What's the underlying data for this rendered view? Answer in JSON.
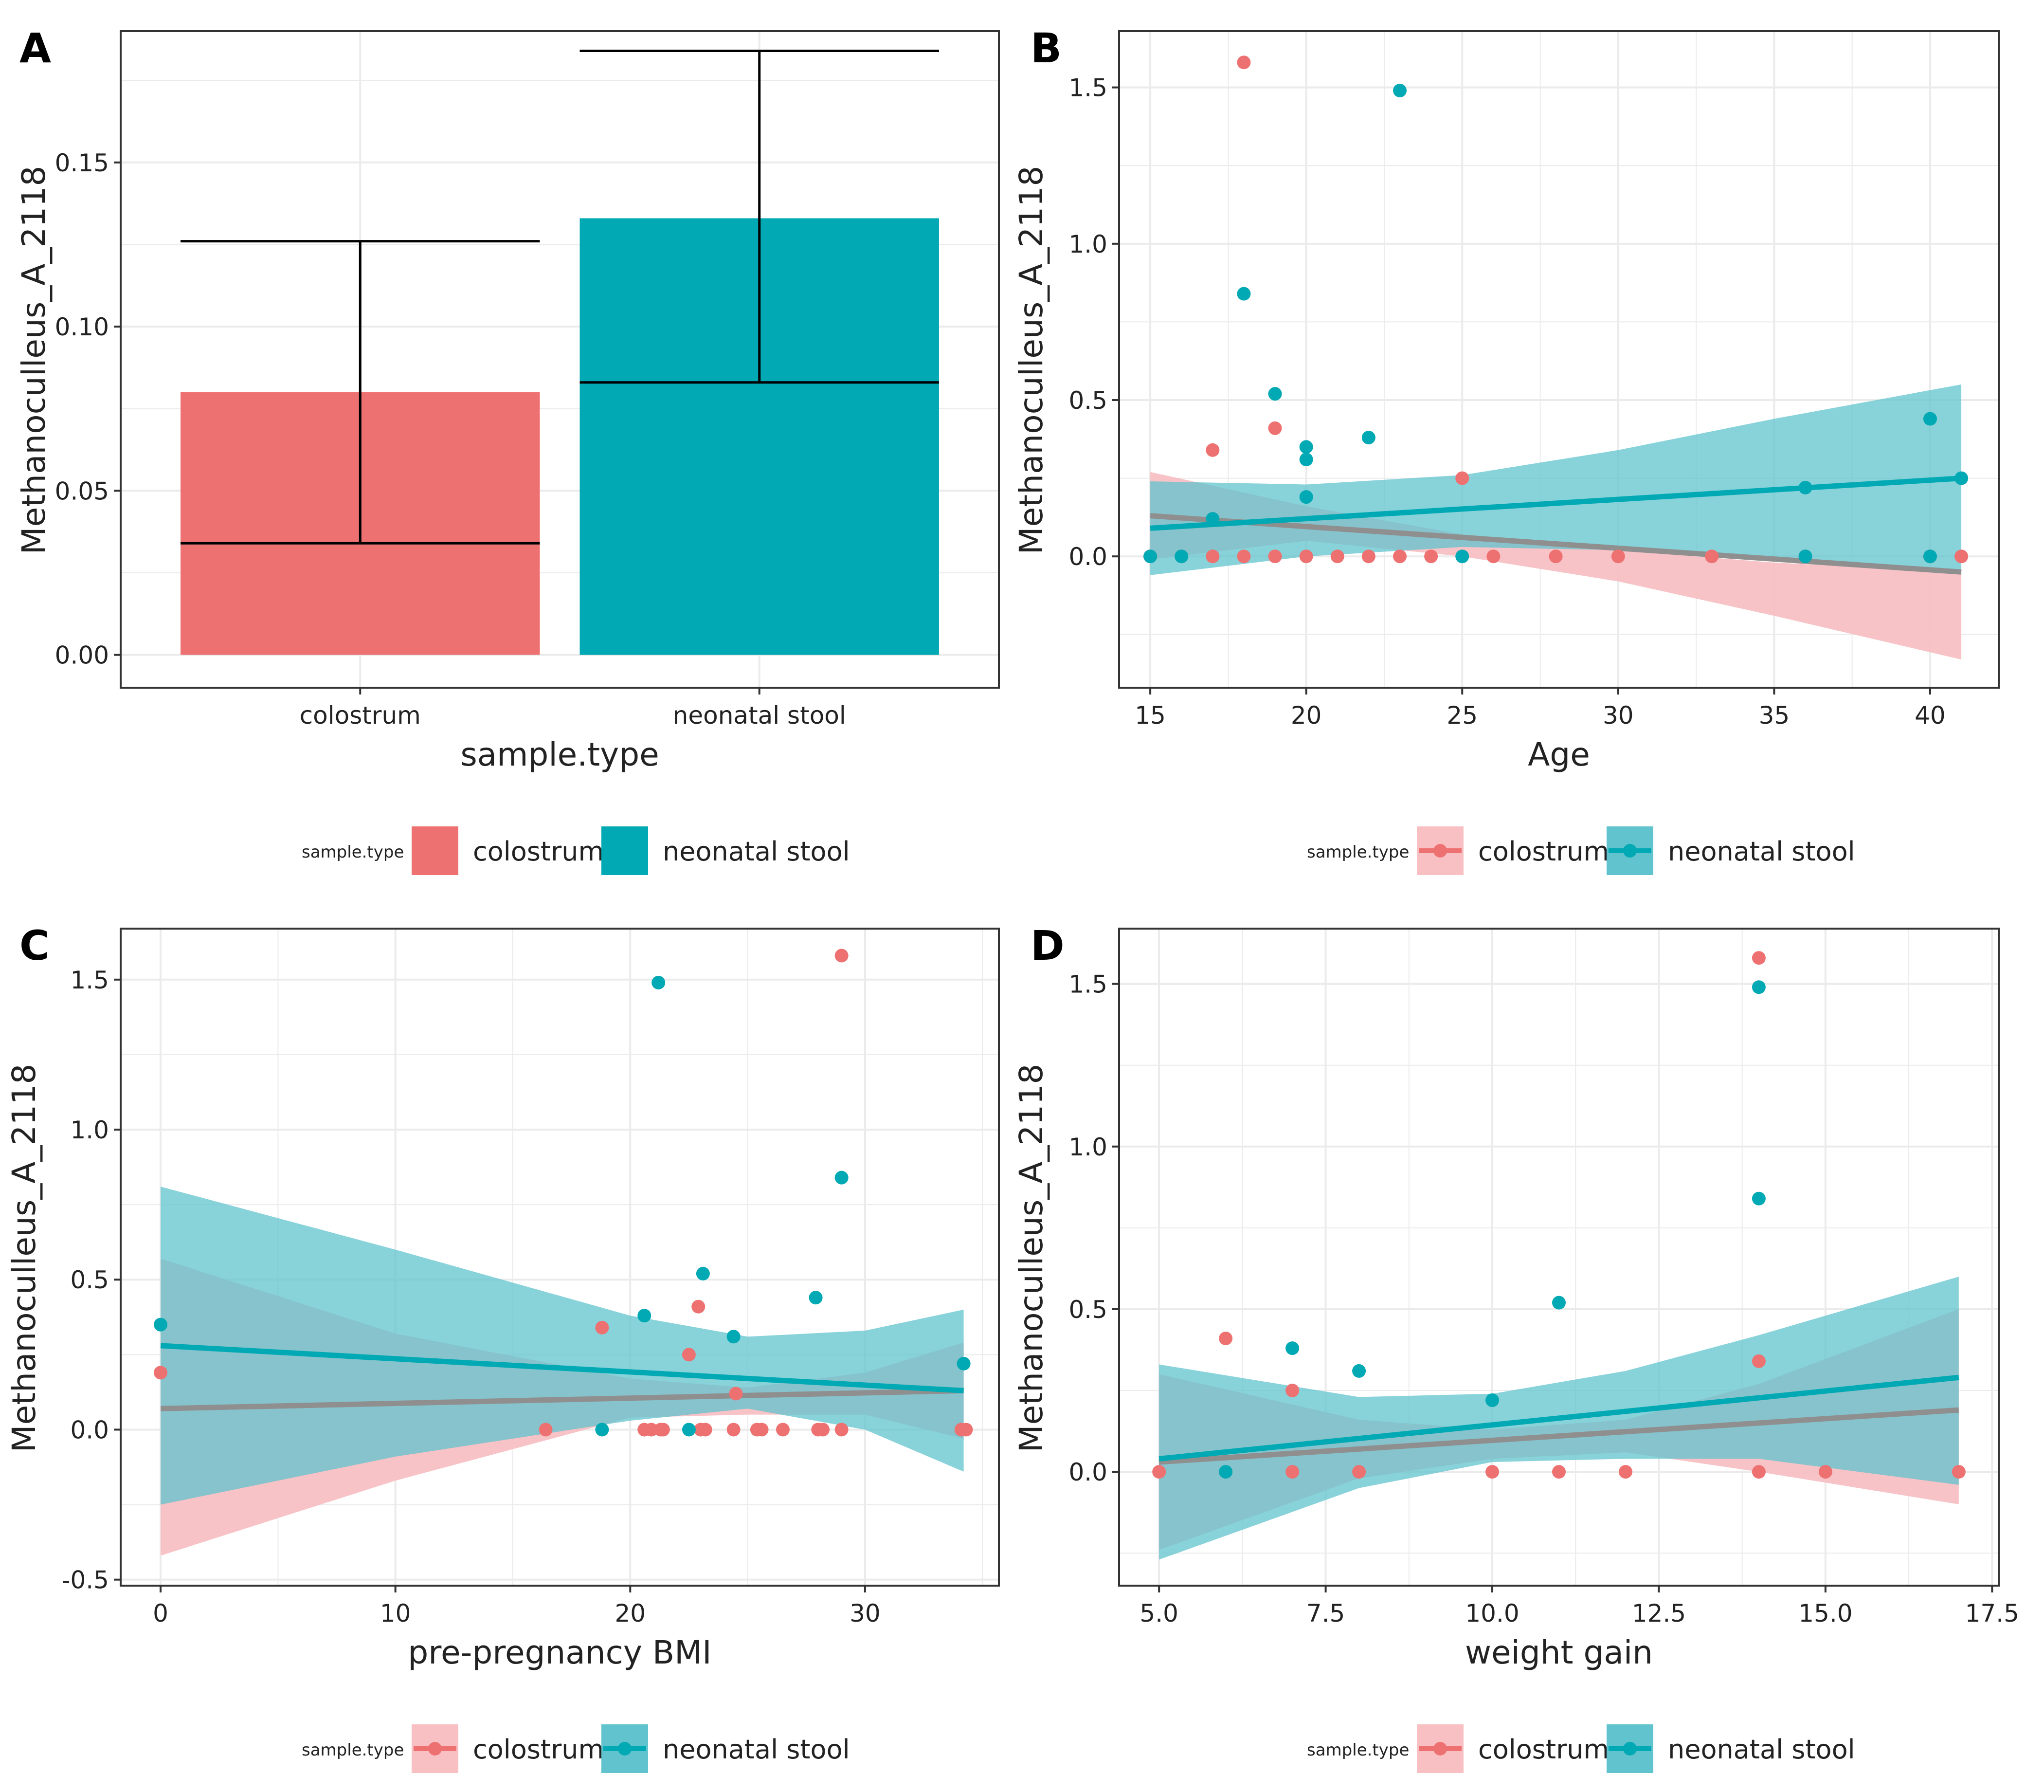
{
  "colors": {
    "colostrum": "#ee7171",
    "colostrum_band": "#f8c0c3",
    "neonatal": "#00a9b3",
    "neonatal_band": "#60c3cd",
    "overlap": "#8f8f8f"
  },
  "chart_data": [
    {
      "panel": "A",
      "type": "bar",
      "title": "",
      "xlabel": "sample.type",
      "ylabel": "Methanoculleus_A_2118",
      "ylim": [
        -0.01,
        0.19
      ],
      "yticks": [
        "0.00",
        "0.05",
        "0.10",
        "0.15"
      ],
      "categories": [
        "colostrum",
        "neonatal stool"
      ],
      "values": [
        0.08,
        0.133
      ],
      "error_low": [
        0.034,
        0.083
      ],
      "error_high": [
        0.126,
        0.184
      ],
      "legend": {
        "title": "sample.type",
        "entries": [
          "colostrum",
          "neonatal stool"
        ]
      }
    },
    {
      "panel": "B",
      "type": "scatter",
      "xlabel": "Age",
      "ylabel": "Methanoculleus_A_2118",
      "xlim": [
        14,
        42.2
      ],
      "ylim": [
        -0.42,
        1.68
      ],
      "xticks": [
        "15",
        "20",
        "25",
        "30",
        "35",
        "40"
      ],
      "yticks": [
        "0.0",
        "0.5",
        "1.0",
        "1.5"
      ],
      "series": [
        {
          "name": "colostrum",
          "points": [
            [
              15,
              0
            ],
            [
              16,
              0
            ],
            [
              17,
              0
            ],
            [
              17,
              0.34
            ],
            [
              18,
              1.58
            ],
            [
              18,
              0
            ],
            [
              19,
              0.41
            ],
            [
              19,
              0
            ],
            [
              20,
              0
            ],
            [
              21,
              0
            ],
            [
              22,
              0
            ],
            [
              23,
              0
            ],
            [
              24,
              0
            ],
            [
              25,
              0.25
            ],
            [
              26,
              0
            ],
            [
              28,
              0
            ],
            [
              30,
              0
            ],
            [
              33,
              0
            ],
            [
              36,
              0
            ],
            [
              40,
              0
            ],
            [
              41,
              0
            ]
          ],
          "fit": [
            [
              15,
              0.13
            ],
            [
              41,
              -0.05
            ]
          ],
          "band": [
            [
              15,
              0.27
            ],
            [
              20,
              0.16
            ],
            [
              25,
              0.07
            ],
            [
              30,
              0.02
            ],
            [
              35,
              -0.02
            ],
            [
              41,
              -0.05
            ],
            [
              41,
              -0.33
            ],
            [
              35,
              -0.19
            ],
            [
              30,
              -0.08
            ],
            [
              25,
              0.0
            ],
            [
              20,
              0.05
            ],
            [
              15,
              -0.01
            ]
          ]
        },
        {
          "name": "neonatal stool",
          "points": [
            [
              15,
              0
            ],
            [
              16,
              0
            ],
            [
              17,
              0.12
            ],
            [
              18,
              0.84
            ],
            [
              19,
              0.52
            ],
            [
              20,
              0.35
            ],
            [
              20,
              0.31
            ],
            [
              20,
              0.19
            ],
            [
              22,
              0.38
            ],
            [
              23,
              1.49
            ],
            [
              25,
              0
            ],
            [
              36,
              0.22
            ],
            [
              40,
              0.44
            ],
            [
              41,
              0.25
            ],
            [
              40,
              0
            ],
            [
              36,
              0
            ]
          ],
          "fit": [
            [
              15,
              0.09
            ],
            [
              41,
              0.25
            ]
          ],
          "band": [
            [
              15,
              0.24
            ],
            [
              20,
              0.23
            ],
            [
              25,
              0.26
            ],
            [
              30,
              0.34
            ],
            [
              35,
              0.44
            ],
            [
              41,
              0.55
            ],
            [
              41,
              -0.05
            ],
            [
              35,
              0.0
            ],
            [
              30,
              0.02
            ],
            [
              25,
              0.03
            ],
            [
              20,
              0.0
            ],
            [
              15,
              -0.06
            ]
          ]
        }
      ],
      "legend": {
        "title": "sample.type",
        "entries": [
          "colostrum",
          "neonatal stool"
        ]
      }
    },
    {
      "panel": "C",
      "type": "scatter",
      "xlabel": "pre-pregnancy BMI",
      "ylabel": "Methanoculleus_A_2118",
      "xlim": [
        -1.7,
        35.7
      ],
      "ylim": [
        -0.52,
        1.67
      ],
      "xticks": [
        "0",
        "10",
        "20",
        "30"
      ],
      "yticks": [
        "-0.5",
        "0.0",
        "0.5",
        "1.0",
        "1.5"
      ],
      "series": [
        {
          "name": "colostrum",
          "points": [
            [
              0,
              0.19
            ],
            [
              16.4,
              0
            ],
            [
              18.8,
              0.34
            ],
            [
              20.6,
              0
            ],
            [
              20.9,
              0
            ],
            [
              21.3,
              0
            ],
            [
              21.4,
              0
            ],
            [
              22.5,
              0.25
            ],
            [
              22.9,
              0.41
            ],
            [
              23.0,
              0
            ],
            [
              23.2,
              0
            ],
            [
              24.4,
              0
            ],
            [
              24.5,
              0.12
            ],
            [
              25.4,
              0
            ],
            [
              25.6,
              0
            ],
            [
              26.5,
              0
            ],
            [
              28.0,
              0
            ],
            [
              28.2,
              0
            ],
            [
              29.0,
              1.58
            ],
            [
              29.0,
              0
            ],
            [
              34.1,
              0
            ],
            [
              34.3,
              0
            ]
          ],
          "fit": [
            [
              0,
              0.07
            ],
            [
              34.2,
              0.13
            ]
          ],
          "band": [
            [
              0,
              0.57
            ],
            [
              10,
              0.32
            ],
            [
              20,
              0.17
            ],
            [
              25,
              0.14
            ],
            [
              30,
              0.19
            ],
            [
              34.2,
              0.29
            ],
            [
              34.2,
              -0.03
            ],
            [
              30,
              0.05
            ],
            [
              25,
              0.05
            ],
            [
              20,
              0.04
            ],
            [
              10,
              -0.17
            ],
            [
              0,
              -0.42
            ]
          ]
        },
        {
          "name": "neonatal stool",
          "points": [
            [
              0,
              0.35
            ],
            [
              18.8,
              0
            ],
            [
              20.6,
              0.38
            ],
            [
              21.2,
              1.49
            ],
            [
              22.5,
              0
            ],
            [
              23.1,
              0.52
            ],
            [
              24.4,
              0.31
            ],
            [
              27.9,
              0.44
            ],
            [
              29.0,
              0.84
            ],
            [
              34.2,
              0.22
            ]
          ],
          "fit": [
            [
              0,
              0.28
            ],
            [
              34.2,
              0.13
            ]
          ],
          "band": [
            [
              0,
              0.81
            ],
            [
              10,
              0.6
            ],
            [
              20,
              0.38
            ],
            [
              25,
              0.31
            ],
            [
              30,
              0.33
            ],
            [
              34.2,
              0.4
            ],
            [
              34.2,
              -0.14
            ],
            [
              30,
              0.0
            ],
            [
              25,
              0.07
            ],
            [
              20,
              0.03
            ],
            [
              10,
              -0.09
            ],
            [
              0,
              -0.25
            ]
          ]
        }
      ],
      "legend": {
        "title": "sample.type",
        "entries": [
          "colostrum",
          "neonatal stool"
        ]
      }
    },
    {
      "panel": "D",
      "type": "scatter",
      "xlabel": "weight gain",
      "ylabel": "Methanoculleus_A_2118",
      "xlim": [
        4.4,
        17.6
      ],
      "ylim": [
        -0.35,
        1.67
      ],
      "xticks": [
        "5.0",
        "7.5",
        "10.0",
        "12.5",
        "15.0",
        "17.5"
      ],
      "yticks": [
        "0.0",
        "0.5",
        "1.0",
        "1.5"
      ],
      "series": [
        {
          "name": "colostrum",
          "points": [
            [
              5,
              0
            ],
            [
              6,
              0.41
            ],
            [
              7,
              0.25
            ],
            [
              7,
              0
            ],
            [
              8,
              0
            ],
            [
              10,
              0
            ],
            [
              11,
              0
            ],
            [
              12,
              0
            ],
            [
              14,
              1.58
            ],
            [
              14,
              0.34
            ],
            [
              14,
              0
            ],
            [
              15,
              0
            ],
            [
              17,
              0
            ]
          ],
          "fit": [
            [
              5,
              0.03
            ],
            [
              17,
              0.19
            ]
          ],
          "band": [
            [
              5,
              0.3
            ],
            [
              8,
              0.16
            ],
            [
              10,
              0.13
            ],
            [
              12,
              0.16
            ],
            [
              14,
              0.27
            ],
            [
              17,
              0.5
            ],
            [
              17,
              -0.1
            ],
            [
              14,
              0.0
            ],
            [
              12,
              0.06
            ],
            [
              10,
              0.04
            ],
            [
              8,
              -0.02
            ],
            [
              5,
              -0.24
            ]
          ]
        },
        {
          "name": "neonatal stool",
          "points": [
            [
              6,
              0
            ],
            [
              7,
              0.38
            ],
            [
              8,
              0.31
            ],
            [
              10,
              0.22
            ],
            [
              11,
              0.52
            ],
            [
              14,
              1.49
            ],
            [
              14,
              0.84
            ]
          ],
          "fit": [
            [
              5,
              0.04
            ],
            [
              17,
              0.29
            ]
          ],
          "band": [
            [
              5,
              0.33
            ],
            [
              8,
              0.23
            ],
            [
              10,
              0.24
            ],
            [
              12,
              0.31
            ],
            [
              14,
              0.42
            ],
            [
              17,
              0.6
            ],
            [
              17,
              -0.04
            ],
            [
              14,
              0.04
            ],
            [
              12,
              0.04
            ],
            [
              10,
              0.03
            ],
            [
              8,
              -0.05
            ],
            [
              5,
              -0.27
            ]
          ]
        }
      ],
      "legend": {
        "title": "sample.type",
        "entries": [
          "colostrum",
          "neonatal stool"
        ]
      }
    }
  ]
}
